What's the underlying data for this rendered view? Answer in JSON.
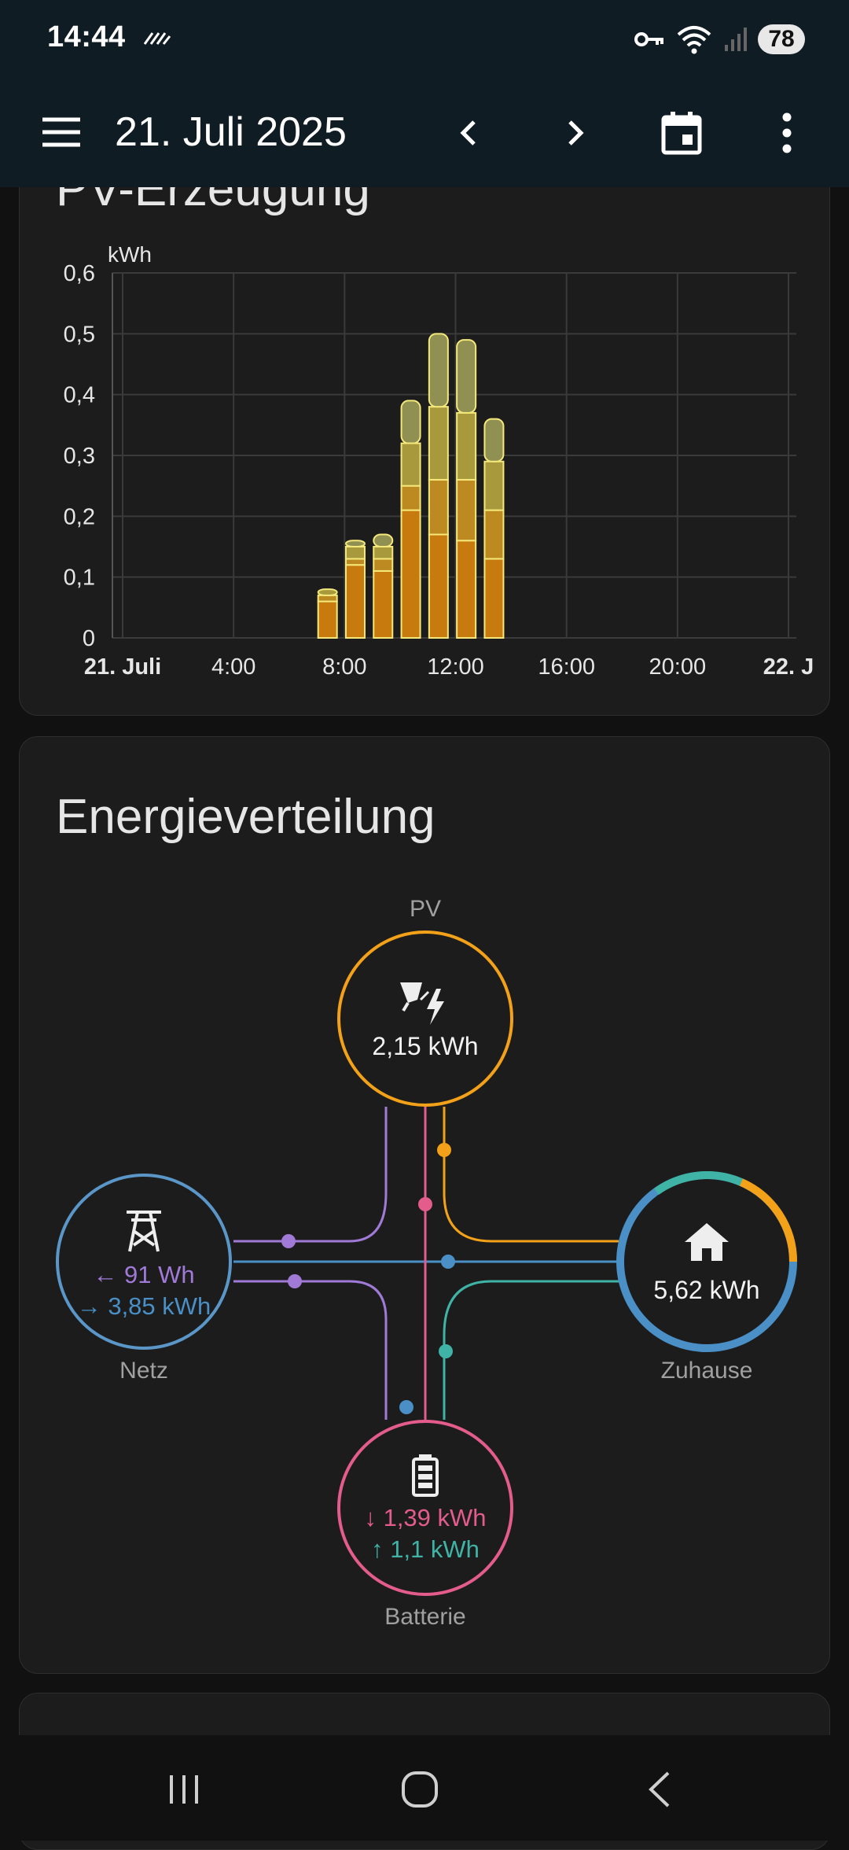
{
  "status_bar": {
    "time": "14:44",
    "battery": "78"
  },
  "app_bar": {
    "title": "21. Juli 2025"
  },
  "pv_card": {
    "title": "PV-Erzeugung",
    "chart_data": {
      "type": "bar",
      "stacked": true,
      "ylabel": "kWh",
      "ylim": [
        0,
        0.6
      ],
      "y_ticks": [
        "0",
        "0,1",
        "0,2",
        "0,3",
        "0,4",
        "0,5",
        "0,6"
      ],
      "x_ticks": [
        "21. Juli",
        "4:00",
        "8:00",
        "12:00",
        "16:00",
        "20:00",
        "22. J"
      ],
      "xlim": [
        0,
        24
      ],
      "grid": true,
      "bars": [
        {
          "hour": 7,
          "segments": [
            0.06,
            0.01,
            0.01
          ]
        },
        {
          "hour": 8,
          "segments": [
            0.12,
            0.01,
            0.02,
            0.01
          ]
        },
        {
          "hour": 9,
          "segments": [
            0.11,
            0.02,
            0.02,
            0.02
          ]
        },
        {
          "hour": 10,
          "segments": [
            0.21,
            0.04,
            0.07,
            0.07
          ]
        },
        {
          "hour": 11,
          "segments": [
            0.17,
            0.09,
            0.12,
            0.12
          ]
        },
        {
          "hour": 12,
          "segments": [
            0.16,
            0.1,
            0.11,
            0.12
          ]
        },
        {
          "hour": 13,
          "segments": [
            0.13,
            0.08,
            0.08,
            0.07
          ]
        }
      ],
      "segment_colors": [
        "#c77a0d",
        "#bd8a22",
        "#a89a3c",
        "#8f9052"
      ]
    }
  },
  "energy_card": {
    "title": "Energieverteilung",
    "pv": {
      "label": "PV",
      "value": "2,15 kWh",
      "color": "#f2a119"
    },
    "grid": {
      "label": "Netz",
      "import": "91 Wh",
      "export": "3,85 kWh",
      "color": "#5a96c8"
    },
    "home": {
      "label": "Zuhause",
      "value": "5,62 kWh"
    },
    "battery": {
      "label": "Batterie",
      "in": "1,39 kWh",
      "out": "1,1 kWh",
      "color": "#e35c8c"
    },
    "colors": {
      "import": "#a07ad6",
      "export": "#4a8fc6",
      "battery_out": "#3fb3a6",
      "pv": "#f2a119",
      "battery": "#e35c8c"
    }
  }
}
